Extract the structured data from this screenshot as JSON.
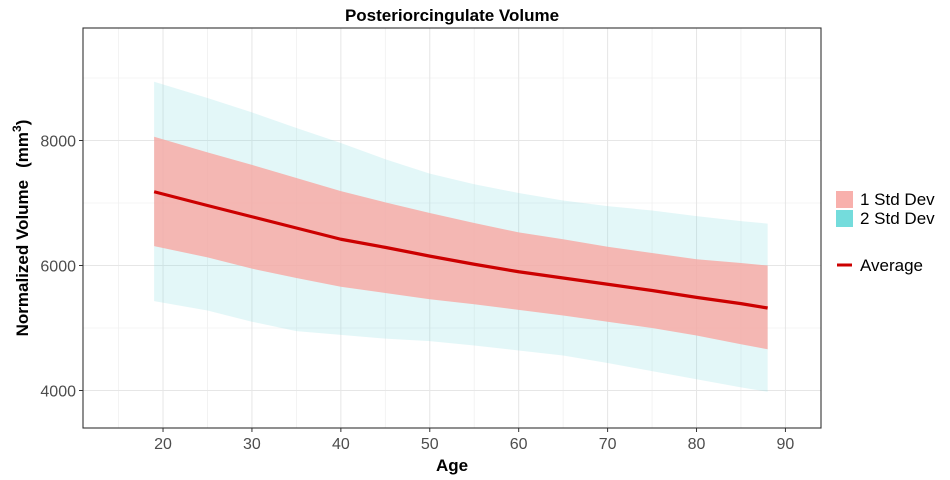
{
  "chart_data": {
    "type": "area",
    "title": "Posteriorcingulate Volume",
    "xlabel": "Age",
    "ylabel": "Normalized Volume",
    "ylabel_unit_base": "mm",
    "ylabel_unit_exp": "3",
    "xlim": [
      11,
      94
    ],
    "ylim": [
      3400,
      9800
    ],
    "x_ticks": [
      20,
      30,
      40,
      50,
      60,
      70,
      80,
      90
    ],
    "y_ticks": [
      4000,
      6000,
      8000
    ],
    "grid": true,
    "legend_position": "right",
    "x": [
      19,
      25,
      30,
      35,
      40,
      45,
      50,
      55,
      60,
      65,
      70,
      75,
      80,
      85,
      88
    ],
    "series": [
      {
        "name": "Average",
        "role": "line",
        "color": "#cc0000",
        "values": [
          7180,
          6960,
          6780,
          6600,
          6420,
          6290,
          6150,
          6020,
          5900,
          5800,
          5700,
          5600,
          5490,
          5390,
          5320
        ]
      },
      {
        "name": "1 Std Dev",
        "role": "band",
        "color": "#f8a8a4",
        "lower": [
          6310,
          6130,
          5950,
          5800,
          5660,
          5560,
          5460,
          5380,
          5290,
          5200,
          5100,
          5000,
          4880,
          4740,
          4660
        ],
        "upper": [
          8060,
          7810,
          7610,
          7400,
          7190,
          7010,
          6840,
          6680,
          6530,
          6420,
          6300,
          6200,
          6100,
          6040,
          6000
        ]
      },
      {
        "name": "2 Std Dev",
        "role": "band",
        "color": "#7fdbe0",
        "lower": [
          5430,
          5280,
          5100,
          4950,
          4890,
          4830,
          4790,
          4720,
          4640,
          4560,
          4440,
          4310,
          4180,
          4050,
          3980
        ],
        "upper": [
          8940,
          8680,
          8450,
          8200,
          7960,
          7700,
          7470,
          7300,
          7160,
          7040,
          6950,
          6880,
          6790,
          6710,
          6670
        ]
      }
    ],
    "legend": {
      "fill_items": [
        {
          "label": "1 Std Dev",
          "color": "#f8b0ac"
        },
        {
          "label": "2 Std Dev",
          "color": "#74dcdc"
        }
      ],
      "line_items": [
        {
          "label": "Average",
          "color": "#cc0000"
        }
      ]
    }
  }
}
